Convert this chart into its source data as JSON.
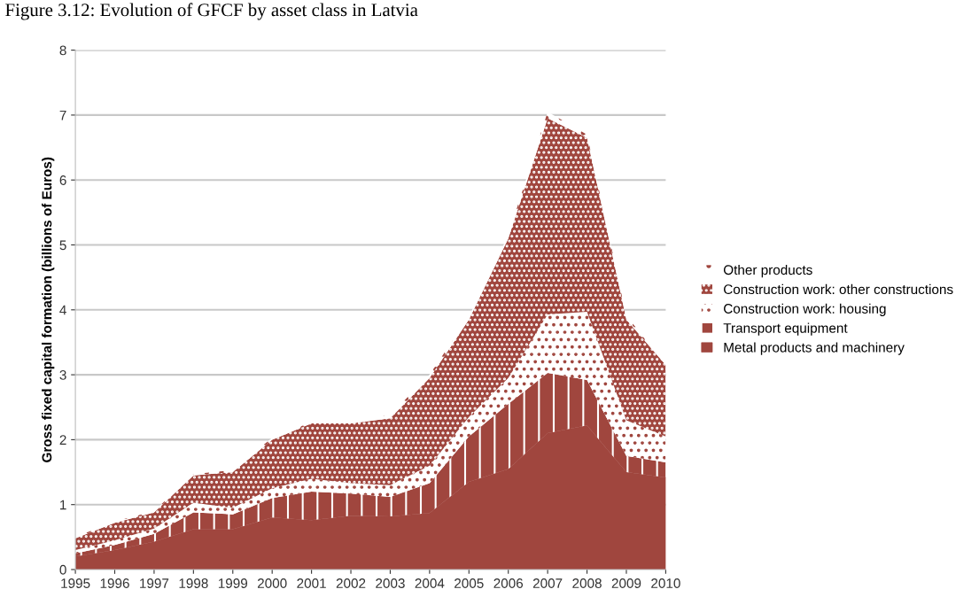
{
  "chart_data": {
    "type": "area",
    "stacked": true,
    "title": "Figure 3.12: Evolution of GFCF by asset class in Latvia",
    "ylabel": "Gross fixed capital formation (billions of Euros)",
    "x": [
      1995,
      1996,
      1997,
      1998,
      1999,
      2000,
      2001,
      2002,
      2003,
      2004,
      2005,
      2006,
      2007,
      2008,
      2009,
      2010
    ],
    "xlim": [
      1995,
      2010
    ],
    "xticks": [
      1995,
      1996,
      1997,
      1998,
      1999,
      2000,
      2001,
      2002,
      2003,
      2004,
      2005,
      2006,
      2007,
      2008,
      2009,
      2010
    ],
    "ylim": [
      0,
      8
    ],
    "yticks": [
      0,
      1,
      2,
      3,
      4,
      5,
      6,
      7,
      8
    ],
    "grid": "y",
    "legend": "right",
    "series": [
      {
        "name": "Metal products and machinery",
        "color": "#a0463e",
        "values": [
          0.2,
          0.3,
          0.43,
          0.62,
          0.62,
          0.8,
          0.76,
          0.83,
          0.82,
          0.87,
          1.35,
          1.55,
          2.1,
          2.22,
          1.5,
          1.42
        ]
      },
      {
        "name": "Transport equipment",
        "color": "#a0463e",
        "values": [
          0.05,
          0.08,
          0.12,
          0.26,
          0.23,
          0.3,
          0.44,
          0.34,
          0.3,
          0.46,
          0.7,
          1.0,
          0.93,
          0.7,
          0.25,
          0.23
        ]
      },
      {
        "name": "Construction work: housing",
        "color": "#a0463e",
        "values": [
          0.05,
          0.07,
          0.08,
          0.15,
          0.1,
          0.15,
          0.2,
          0.16,
          0.18,
          0.27,
          0.3,
          0.4,
          0.9,
          1.05,
          0.55,
          0.4
        ]
      },
      {
        "name": "Construction work: other constructions",
        "color": "#a0463e",
        "values": [
          0.18,
          0.27,
          0.25,
          0.42,
          0.55,
          0.75,
          0.85,
          0.92,
          1.03,
          1.35,
          1.5,
          2.15,
          3.02,
          2.68,
          1.55,
          1.1
        ]
      },
      {
        "name": "Other products",
        "color": "#a0463e",
        "values": [
          0.02,
          0.02,
          0.02,
          0.02,
          0.03,
          0.03,
          0.03,
          0.05,
          0.05,
          0.05,
          0.05,
          0.05,
          0.1,
          0.05,
          0.05,
          0.05
        ]
      }
    ]
  }
}
